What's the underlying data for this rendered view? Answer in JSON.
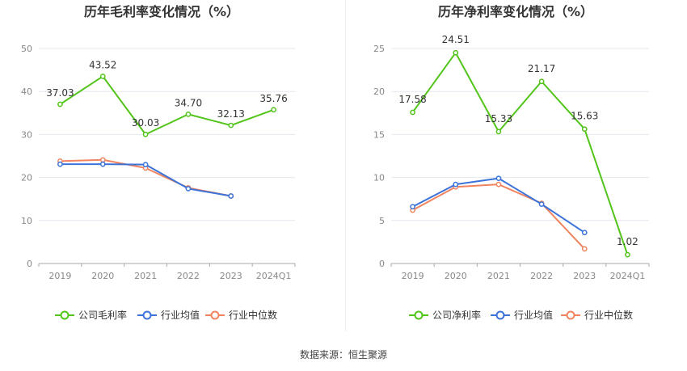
{
  "source_label": "数据来源：恒生聚源",
  "chart_data": [
    {
      "type": "line",
      "title": "历年毛利率变化情况（%）",
      "categories": [
        "2019",
        "2020",
        "2021",
        "2022",
        "2023",
        "2024Q1"
      ],
      "ylim": [
        0,
        50
      ],
      "yticks": [
        0,
        10,
        20,
        30,
        40,
        50
      ],
      "ytick_labels": [
        "0",
        "10",
        "20",
        "30",
        "40",
        "50"
      ],
      "grid": true,
      "legend": "bottom",
      "series": [
        {
          "name": "公司毛利率",
          "color": "#52c41a",
          "values": [
            37.03,
            43.52,
            30.03,
            34.7,
            32.13,
            35.76
          ],
          "labels": [
            "37.03",
            "43.52",
            "30.03",
            "34.70",
            "32.13",
            "35.76"
          ]
        },
        {
          "name": "行业均值",
          "color": "#3b73d9",
          "values": [
            23.1,
            23.1,
            23.0,
            17.4,
            15.7,
            null
          ]
        },
        {
          "name": "行业中位数",
          "color": "#f0845f",
          "values": [
            23.8,
            24.1,
            22.2,
            17.6,
            15.7,
            null
          ]
        }
      ]
    },
    {
      "type": "line",
      "title": "历年净利率变化情况（%）",
      "categories": [
        "2019",
        "2020",
        "2021",
        "2022",
        "2023",
        "2024Q1"
      ],
      "ylim": [
        0,
        25
      ],
      "yticks": [
        0,
        5,
        10,
        15,
        20,
        25
      ],
      "ytick_labels": [
        "0",
        "5",
        "10",
        "15",
        "20",
        "25"
      ],
      "grid": true,
      "legend": "bottom",
      "series": [
        {
          "name": "公司净利率",
          "color": "#52c41a",
          "values": [
            17.58,
            24.51,
            15.33,
            21.17,
            15.63,
            1.02
          ],
          "labels": [
            "17.58",
            "24.51",
            "15.33",
            "21.17",
            "15.63",
            "1.02"
          ]
        },
        {
          "name": "行业均值",
          "color": "#3b73d9",
          "values": [
            6.6,
            9.2,
            9.9,
            6.9,
            3.6,
            null
          ]
        },
        {
          "name": "行业中位数",
          "color": "#f0845f",
          "values": [
            6.2,
            8.9,
            9.2,
            7.0,
            1.7,
            null
          ]
        }
      ]
    }
  ]
}
